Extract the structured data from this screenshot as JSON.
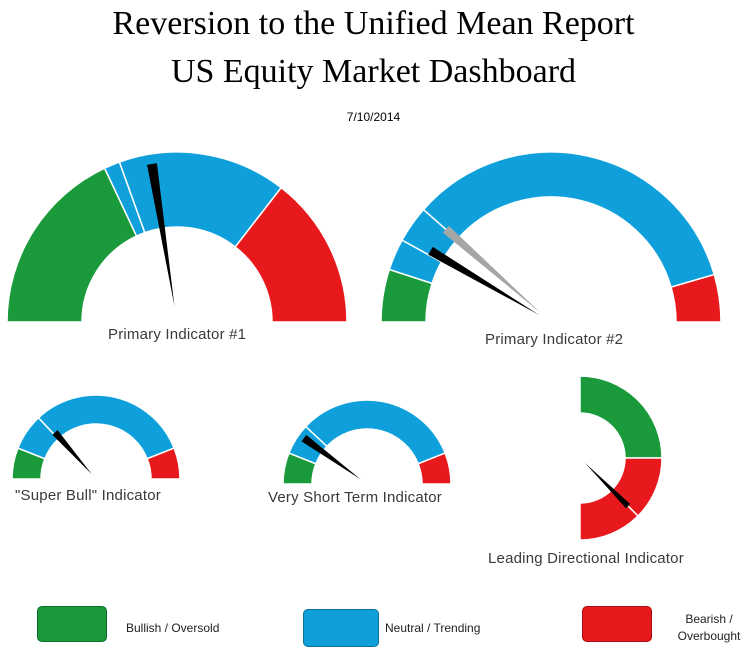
{
  "header": {
    "title_line1": "Reversion to the Unified Mean Report",
    "title_line2": "US Equity Market Dashboard",
    "date": "7/10/2014"
  },
  "colors": {
    "bullish": "#1a9a3b",
    "neutral": "#0fa0dc",
    "bearish": "#e8191c",
    "needle_primary": "#000000",
    "needle_secondary": "#a6a6a6"
  },
  "chart_data": [
    {
      "type": "gauge",
      "label": "Primary Indicator #1",
      "arc_degrees": 180,
      "segments": [
        {
          "zone": "bullish",
          "fraction": 0.36
        },
        {
          "zone": "neutral",
          "fraction": 0.03
        },
        {
          "zone": "neutral",
          "fraction": 0.32
        },
        {
          "zone": "bearish",
          "fraction": 0.29
        }
      ],
      "needles": [
        {
          "value": 0.45,
          "color": "needle_primary"
        }
      ]
    },
    {
      "type": "gauge",
      "label": "Primary Indicator #2",
      "arc_degrees": 180,
      "segments": [
        {
          "zone": "bullish",
          "fraction": 0.1
        },
        {
          "zone": "neutral",
          "fraction": 0.06
        },
        {
          "zone": "neutral",
          "fraction": 0.07
        },
        {
          "zone": "neutral",
          "fraction": 0.68
        },
        {
          "zone": "bearish",
          "fraction": 0.09
        }
      ],
      "needles": [
        {
          "value": 0.17,
          "color": "needle_primary"
        },
        {
          "value": 0.23,
          "color": "needle_secondary"
        }
      ]
    },
    {
      "type": "gauge",
      "label": "\"Super Bull\"  Indicator",
      "arc_degrees": 180,
      "segments": [
        {
          "zone": "bullish",
          "fraction": 0.12
        },
        {
          "zone": "neutral",
          "fraction": 0.14
        },
        {
          "zone": "neutral",
          "fraction": 0.62
        },
        {
          "zone": "bearish",
          "fraction": 0.12
        }
      ],
      "needles": [
        {
          "value": 0.27,
          "color": "needle_primary"
        }
      ]
    },
    {
      "type": "gauge",
      "label": "Very Short Term  Indicator",
      "arc_degrees": 180,
      "segments": [
        {
          "zone": "bullish",
          "fraction": 0.12
        },
        {
          "zone": "neutral",
          "fraction": 0.12
        },
        {
          "zone": "neutral",
          "fraction": 0.64
        },
        {
          "zone": "bearish",
          "fraction": 0.12
        }
      ],
      "needles": [
        {
          "value": 0.2,
          "color": "needle_primary"
        }
      ]
    },
    {
      "type": "gauge",
      "label": "Leading Directional Indicator",
      "arc_degrees": 180,
      "orientation": "vertical",
      "segments": [
        {
          "zone": "bullish",
          "fraction": 0.5
        },
        {
          "zone": "bearish",
          "fraction": 0.25
        },
        {
          "zone": "bearish",
          "fraction": 0.25
        }
      ],
      "needles": [
        {
          "value": 0.75,
          "color": "needle_primary"
        }
      ]
    }
  ],
  "legend": [
    {
      "zone": "bullish",
      "label": "Bullish / Oversold"
    },
    {
      "zone": "neutral",
      "label": "Neutral / Trending"
    },
    {
      "zone": "bearish",
      "label": "Bearish / Overbought"
    }
  ]
}
